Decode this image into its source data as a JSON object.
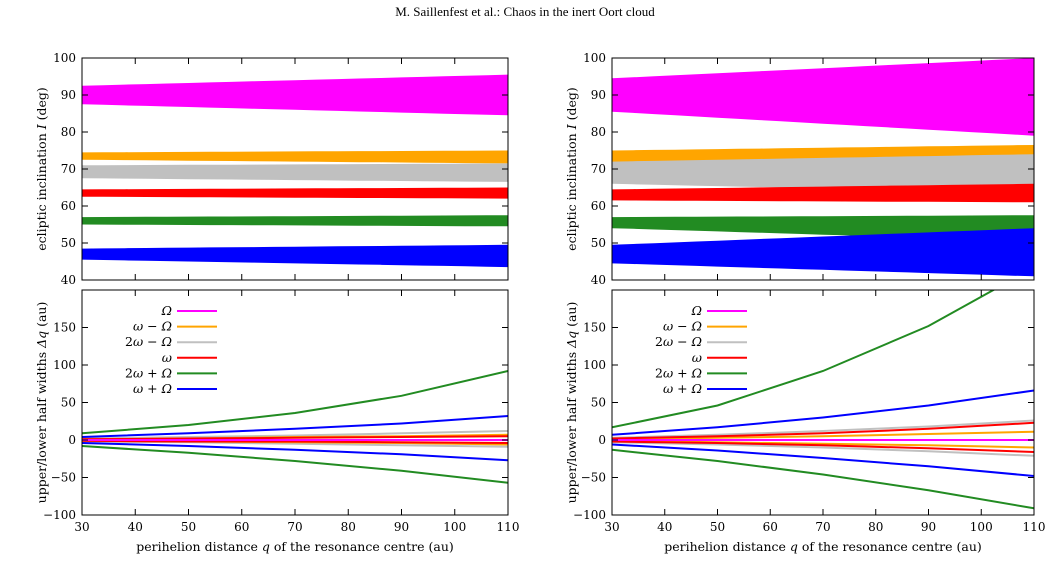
{
  "header": {
    "text": "M. Saillenfest et al.: Chaos in the inert Oort cloud"
  },
  "colors": {
    "Omega": "#ff00ff",
    "omega_minus_Omega": "#ffa500",
    "2omega_minus_Omega": "#c0c0c0",
    "omega": "#ff0000",
    "2omega_plus_Omega": "#228b22",
    "omega_plus_Omega": "#0000ff"
  },
  "chart_data": [
    {
      "type": "area",
      "panel": "top-left",
      "ylabel": "ecliptic inclination I (deg)",
      "xlim": [
        30,
        110
      ],
      "ylim": [
        40,
        100
      ],
      "yticks": [
        40,
        50,
        60,
        70,
        80,
        90,
        100
      ],
      "series": [
        {
          "key": "Omega",
          "x": [
            30,
            110
          ],
          "lower": [
            87.5,
            84.5
          ],
          "upper": [
            92.5,
            95.5
          ]
        },
        {
          "key": "omega_minus_Omega",
          "x": [
            30,
            110
          ],
          "lower": [
            72.5,
            71.5
          ],
          "upper": [
            74.5,
            75.0
          ]
        },
        {
          "key": "2omega_minus_Omega",
          "x": [
            30,
            110
          ],
          "lower": [
            67.5,
            66.5
          ],
          "upper": [
            71.0,
            71.5
          ]
        },
        {
          "key": "omega",
          "x": [
            30,
            110
          ],
          "lower": [
            62.5,
            62.0
          ],
          "upper": [
            64.5,
            65.0
          ]
        },
        {
          "key": "2omega_plus_Omega",
          "x": [
            30,
            110
          ],
          "lower": [
            55.0,
            54.5
          ],
          "upper": [
            57.0,
            57.5
          ]
        },
        {
          "key": "omega_plus_Omega",
          "x": [
            30,
            110
          ],
          "lower": [
            45.5,
            43.5
          ],
          "upper": [
            48.5,
            49.5
          ]
        }
      ]
    },
    {
      "type": "area",
      "panel": "top-right",
      "ylabel": "ecliptic inclination I (deg)",
      "xlim": [
        30,
        110
      ],
      "ylim": [
        40,
        100
      ],
      "yticks": [
        40,
        50,
        60,
        70,
        80,
        90,
        100
      ],
      "series": [
        {
          "key": "Omega",
          "x": [
            30,
            110
          ],
          "lower": [
            85.5,
            79.0
          ],
          "upper": [
            94.5,
            100.0
          ]
        },
        {
          "key": "omega_minus_Omega",
          "x": [
            30,
            110
          ],
          "lower": [
            71.5,
            70.0
          ],
          "upper": [
            75.0,
            76.5
          ]
        },
        {
          "key": "2omega_minus_Omega",
          "x": [
            30,
            110
          ],
          "lower": [
            66.0,
            63.5
          ],
          "upper": [
            72.0,
            74.0
          ]
        },
        {
          "key": "omega",
          "x": [
            30,
            110
          ],
          "lower": [
            61.5,
            61.0
          ],
          "upper": [
            64.5,
            66.0
          ]
        },
        {
          "key": "2omega_plus_Omega",
          "x": [
            30,
            110
          ],
          "lower": [
            54.0,
            50.5
          ],
          "upper": [
            57.0,
            57.5
          ]
        },
        {
          "key": "omega_plus_Omega",
          "x": [
            30,
            110
          ],
          "lower": [
            44.5,
            41.0
          ],
          "upper": [
            49.5,
            54.0
          ]
        }
      ]
    },
    {
      "type": "line",
      "panel": "bottom-left",
      "xlabel": "perihelion distance q of the resonance centre (au)",
      "ylabel": "upper/lower half widths Δq (au)",
      "xlim": [
        30,
        110
      ],
      "ylim": [
        -100,
        200
      ],
      "xticks": [
        30,
        40,
        50,
        60,
        70,
        80,
        90,
        100,
        110
      ],
      "yticks": [
        -100,
        -50,
        0,
        50,
        100,
        150
      ],
      "x": [
        30,
        50,
        70,
        90,
        110
      ],
      "legend": {
        "position": "top-left",
        "entries": [
          {
            "key": "Omega",
            "label": "Ω"
          },
          {
            "key": "omega_minus_Omega",
            "label": "ω − Ω"
          },
          {
            "key": "2omega_minus_Omega",
            "label": "2ω − Ω"
          },
          {
            "key": "omega",
            "label": "ω"
          },
          {
            "key": "2omega_plus_Omega",
            "label": "2ω + Ω"
          },
          {
            "key": "omega_plus_Omega",
            "label": "ω + Ω"
          }
        ]
      },
      "series": [
        {
          "key": "2omega_minus_Omega",
          "values": [
            2,
            4,
            6,
            9,
            12
          ]
        },
        {
          "key": "2omega_minus_Omega",
          "values": [
            -2,
            -3,
            -5,
            -7,
            -9
          ]
        },
        {
          "key": "omega_minus_Omega",
          "values": [
            1,
            2,
            4,
            5,
            7
          ]
        },
        {
          "key": "omega_minus_Omega",
          "values": [
            -1,
            -2,
            -3,
            -4,
            -6
          ]
        },
        {
          "key": "omega",
          "values": [
            1,
            2,
            3,
            4,
            5
          ]
        },
        {
          "key": "omega",
          "values": [
            -1,
            -2,
            -2,
            -3,
            -4
          ]
        },
        {
          "key": "Omega",
          "values": [
            0,
            0,
            0,
            0,
            0
          ]
        },
        {
          "key": "2omega_plus_Omega",
          "values": [
            9,
            20,
            36,
            59,
            92
          ]
        },
        {
          "key": "2omega_plus_Omega",
          "values": [
            -8,
            -17,
            -28,
            -41,
            -57
          ]
        },
        {
          "key": "omega_plus_Omega",
          "values": [
            4,
            9,
            15,
            22,
            32
          ]
        },
        {
          "key": "omega_plus_Omega",
          "values": [
            -4,
            -8,
            -13,
            -19,
            -27
          ]
        }
      ]
    },
    {
      "type": "line",
      "panel": "bottom-right",
      "xlabel": "perihelion distance q of the resonance centre (au)",
      "ylabel": "upper/lower half widths Δq (au)",
      "xlim": [
        30,
        110
      ],
      "ylim": [
        -100,
        200
      ],
      "xticks": [
        30,
        40,
        50,
        60,
        70,
        80,
        90,
        100,
        110
      ],
      "yticks": [
        -100,
        -50,
        0,
        50,
        100,
        150
      ],
      "x": [
        30,
        50,
        70,
        90,
        110
      ],
      "legend": {
        "position": "top-left",
        "entries": [
          {
            "key": "Omega",
            "label": "Ω"
          },
          {
            "key": "omega_minus_Omega",
            "label": "ω − Ω"
          },
          {
            "key": "2omega_minus_Omega",
            "label": "2ω − Ω"
          },
          {
            "key": "omega",
            "label": "ω"
          },
          {
            "key": "2omega_plus_Omega",
            "label": "2ω + Ω"
          },
          {
            "key": "omega_plus_Omega",
            "label": "ω + Ω"
          }
        ]
      },
      "series": [
        {
          "key": "2omega_minus_Omega",
          "values": [
            3,
            7,
            12,
            18,
            26
          ]
        },
        {
          "key": "2omega_minus_Omega",
          "values": [
            -3,
            -6,
            -10,
            -15,
            -21
          ]
        },
        {
          "key": "omega_minus_Omega",
          "values": [
            1,
            3,
            5,
            8,
            11
          ]
        },
        {
          "key": "omega_minus_Omega",
          "values": [
            -1,
            -3,
            -5,
            -7,
            -10
          ]
        },
        {
          "key": "omega",
          "values": [
            2,
            5,
            9,
            15,
            23
          ]
        },
        {
          "key": "omega",
          "values": [
            -2,
            -4,
            -7,
            -11,
            -16
          ]
        },
        {
          "key": "Omega",
          "values": [
            0,
            0,
            0,
            0,
            0
          ]
        },
        {
          "key": "2omega_plus_Omega",
          "values": [
            17,
            46,
            92,
            152,
            230
          ]
        },
        {
          "key": "2omega_plus_Omega",
          "values": [
            -13,
            -28,
            -46,
            -67,
            -91
          ]
        },
        {
          "key": "omega_plus_Omega",
          "values": [
            7,
            17,
            30,
            46,
            66
          ]
        },
        {
          "key": "omega_plus_Omega",
          "values": [
            -6,
            -14,
            -24,
            -35,
            -48
          ]
        }
      ]
    }
  ]
}
